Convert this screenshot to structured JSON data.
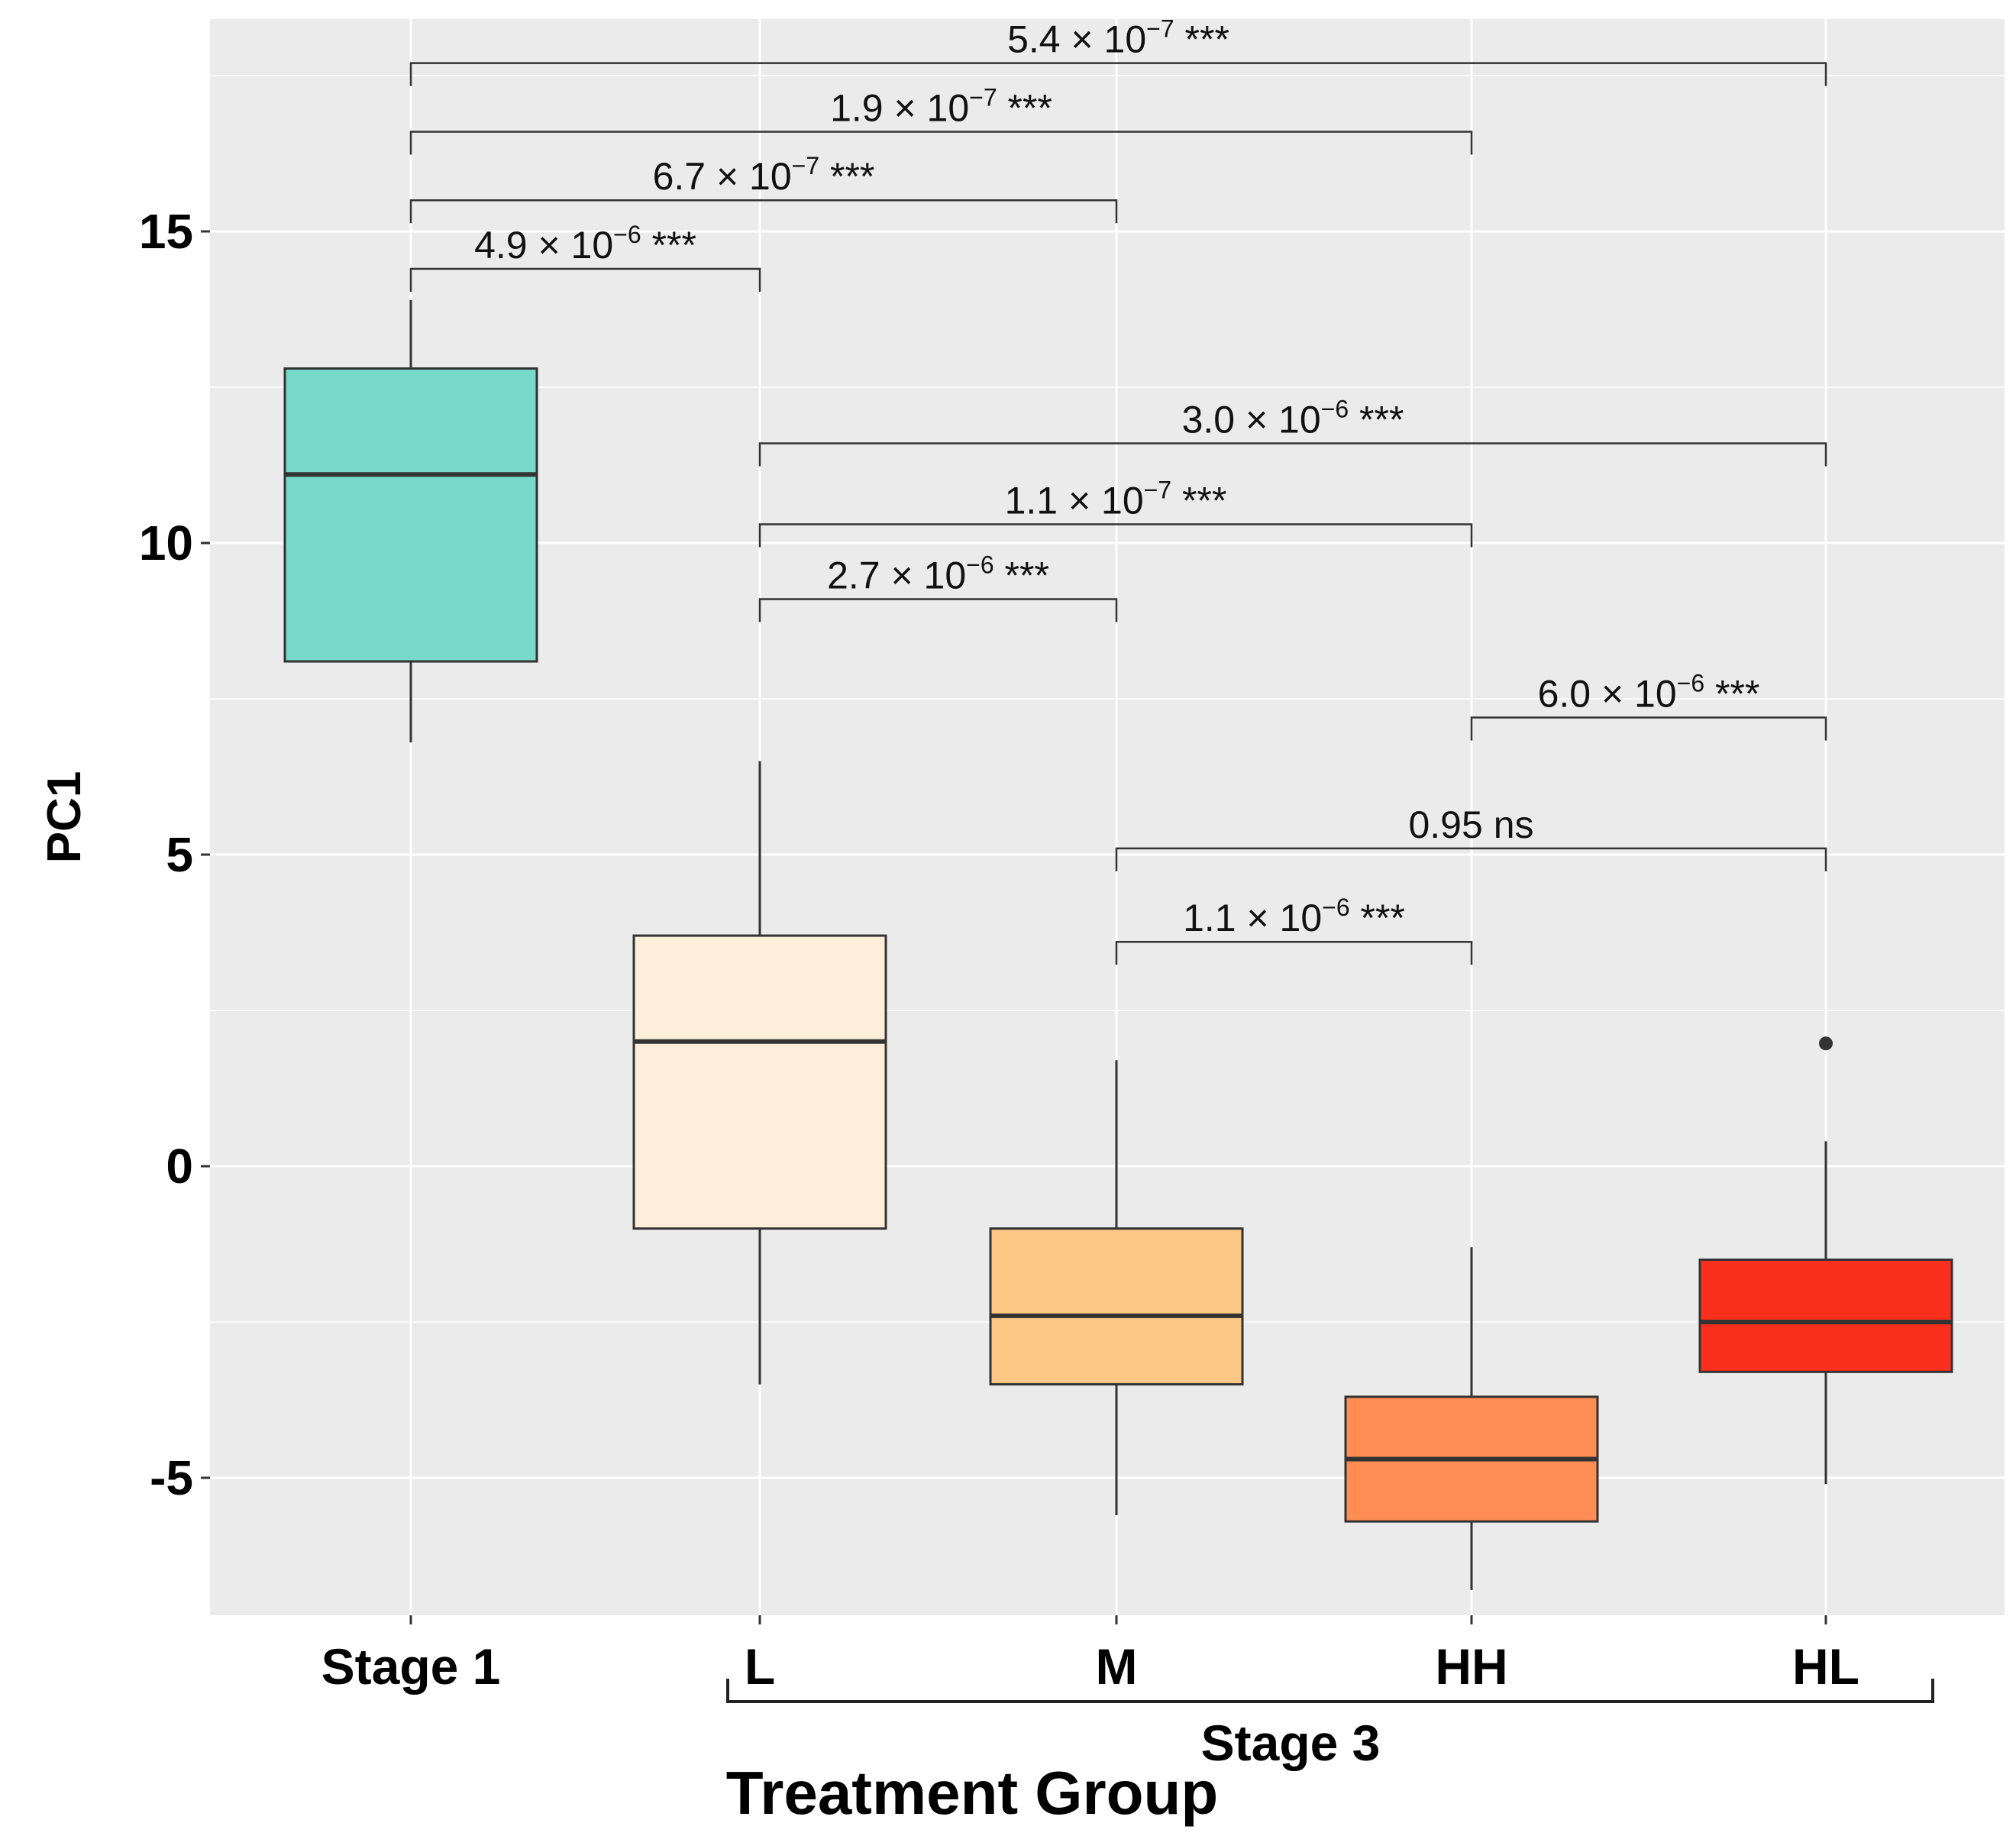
{
  "chart_data": {
    "type": "box",
    "title": "",
    "xlabel": "Treatment Group",
    "ylabel": "PC1",
    "ylim": [
      -7,
      18
    ],
    "yticks": [
      -5,
      0,
      5,
      10,
      15
    ],
    "grid": true,
    "categories": [
      "Stage 1",
      "L",
      "M",
      "HH",
      "HL"
    ],
    "group_bracket": {
      "label": "Stage 3",
      "from": "L",
      "to": "HL"
    },
    "boxes": [
      {
        "category": "Stage 1",
        "color": "#76D9C9",
        "whisker_low": 6.8,
        "q1": 8.1,
        "median": 11.1,
        "q3": 12.8,
        "whisker_high": 13.9,
        "outliers": []
      },
      {
        "category": "L",
        "color": "#FEEEDA",
        "whisker_low": -3.5,
        "q1": -1.0,
        "median": 2.0,
        "q3": 3.7,
        "whisker_high": 6.5,
        "outliers": []
      },
      {
        "category": "M",
        "color": "#FDC886",
        "whisker_low": -5.6,
        "q1": -3.5,
        "median": -2.4,
        "q3": -1.0,
        "whisker_high": 1.7,
        "outliers": []
      },
      {
        "category": "HH",
        "color": "#FD8D54",
        "whisker_low": -6.8,
        "q1": -5.7,
        "median": -4.7,
        "q3": -3.7,
        "whisker_high": -1.3,
        "outliers": []
      },
      {
        "category": "HL",
        "color": "#FA2F1C",
        "whisker_low": -5.1,
        "q1": -3.3,
        "median": -2.5,
        "q3": -1.5,
        "whisker_high": 0.4,
        "outliers": [
          1.97
        ]
      }
    ],
    "comparisons": [
      {
        "from": "Stage 1",
        "to": "HL",
        "y": 17.7,
        "mantissa": "5.4",
        "exponent": "−7",
        "sig": "***"
      },
      {
        "from": "Stage 1",
        "to": "HH",
        "y": 16.6,
        "mantissa": "1.9",
        "exponent": "−7",
        "sig": "***"
      },
      {
        "from": "Stage 1",
        "to": "M",
        "y": 15.5,
        "mantissa": "6.7",
        "exponent": "−7",
        "sig": "***"
      },
      {
        "from": "Stage 1",
        "to": "L",
        "y": 14.4,
        "mantissa": "4.9",
        "exponent": "−6",
        "sig": "***"
      },
      {
        "from": "L",
        "to": "HL",
        "y": 11.6,
        "mantissa": "3.0",
        "exponent": "−6",
        "sig": "***"
      },
      {
        "from": "L",
        "to": "HH",
        "y": 10.3,
        "mantissa": "1.1",
        "exponent": "−7",
        "sig": "***"
      },
      {
        "from": "L",
        "to": "M",
        "y": 9.1,
        "mantissa": "2.7",
        "exponent": "−6",
        "sig": "***"
      },
      {
        "from": "HH",
        "to": "HL",
        "y": 7.2,
        "mantissa": "6.0",
        "exponent": "−6",
        "sig": "***"
      },
      {
        "from": "M",
        "to": "HL",
        "y": 5.1,
        "text": "0.95 ns"
      },
      {
        "from": "M",
        "to": "HH",
        "y": 3.6,
        "mantissa": "1.1",
        "exponent": "−6",
        "sig": "***"
      }
    ]
  }
}
